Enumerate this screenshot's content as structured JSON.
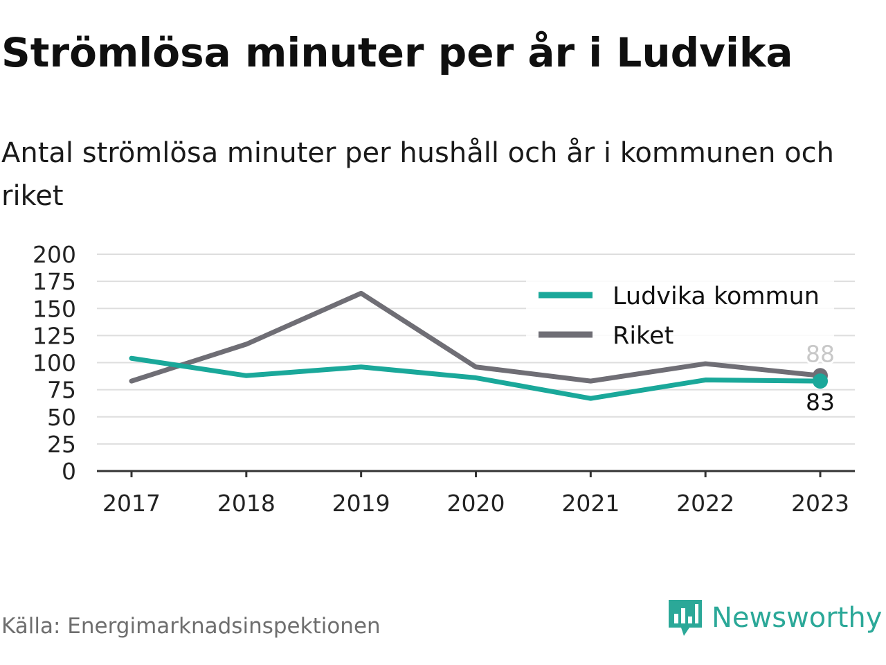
{
  "header": {
    "title": "Strömlösa minuter per år i Ludvika",
    "subtitle": "Antal strömlösa minuter per hushåll och år i kommunen och riket"
  },
  "footer": {
    "source": "Källa: Energimarknadsinspektionen",
    "brand": "Newsworthy"
  },
  "colors": {
    "ludvika": "#1aa89a",
    "riket": "#6f6e75",
    "brand": "#2ba898"
  },
  "chart_data": {
    "type": "line",
    "x": [
      "2017",
      "2018",
      "2019",
      "2020",
      "2021",
      "2022",
      "2023"
    ],
    "ylim": [
      0,
      200
    ],
    "yticks": [
      0,
      25,
      50,
      75,
      100,
      125,
      150,
      175,
      200
    ],
    "grid": true,
    "legend": "top-right",
    "series": [
      {
        "name": "Ludvika kommun",
        "values": [
          104,
          88,
          96,
          86,
          67,
          84,
          83
        ],
        "end_label": "83"
      },
      {
        "name": "Riket",
        "values": [
          83,
          117,
          164,
          96,
          83,
          99,
          88
        ],
        "end_label": "88"
      }
    ]
  }
}
